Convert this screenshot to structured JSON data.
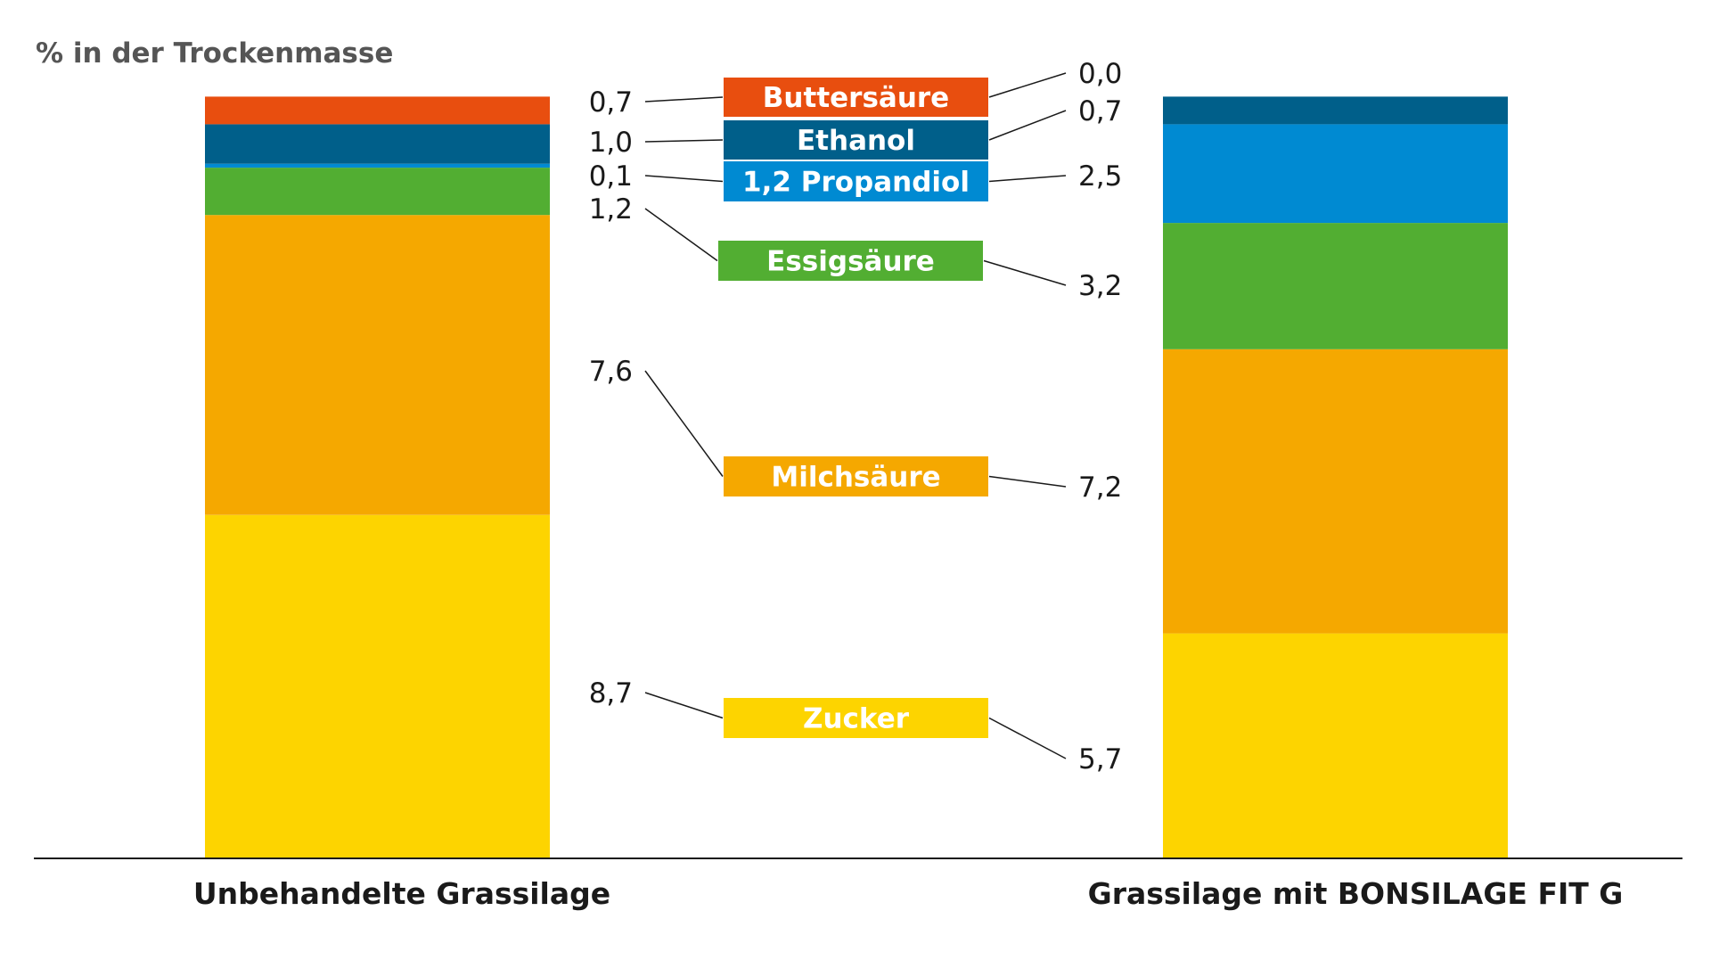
{
  "chart_data": {
    "type": "bar",
    "stacked": true,
    "ylabel": "% in der Trockenmasse",
    "categories": [
      "Unbehandelte Grassilage",
      "Grassilage mit BONSILAGE FIT G"
    ],
    "series": [
      {
        "name": "Zucker",
        "color": "#FDD400",
        "values": [
          8.7,
          5.7
        ],
        "labels": [
          "8,7",
          "5,7"
        ]
      },
      {
        "name": "Milchsäure",
        "color": "#F5A800",
        "values": [
          7.6,
          7.2
        ],
        "labels": [
          "7,6",
          "7,2"
        ]
      },
      {
        "name": "Essigsäure",
        "color": "#52AE32",
        "values": [
          1.2,
          3.2
        ],
        "labels": [
          "1,2",
          "3,2"
        ]
      },
      {
        "name": "1,2 Propandiol",
        "color": "#008AD2",
        "values": [
          0.1,
          2.5
        ],
        "labels": [
          "0,1",
          "2,5"
        ]
      },
      {
        "name": "Ethanol",
        "color": "#005F8A",
        "values": [
          1.0,
          0.7
        ],
        "labels": [
          "1,0",
          "0,7"
        ]
      },
      {
        "name": "Buttersäure",
        "color": "#E84E0F",
        "values": [
          0.7,
          0.0
        ],
        "labels": [
          "0,7",
          "0,0"
        ]
      }
    ],
    "grid": false,
    "legend": "center"
  }
}
